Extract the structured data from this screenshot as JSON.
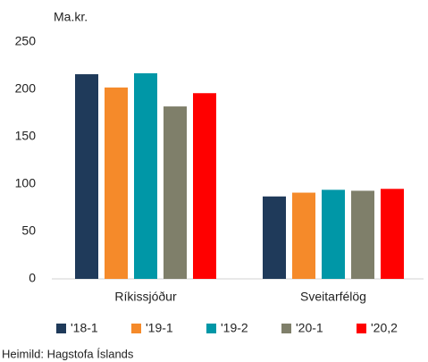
{
  "chart_data": {
    "type": "bar",
    "y_label": "Ma.kr.",
    "source": "Heimild: Hagstofa Íslands",
    "categories": [
      "Ríkissjóður",
      "Sveitarfélög"
    ],
    "series": [
      {
        "name": "'18-1",
        "color": "#1f3a5a",
        "values": [
          216,
          87
        ]
      },
      {
        "name": "'19-1",
        "color": "#f58a2a",
        "values": [
          202,
          91
        ]
      },
      {
        "name": "'19-2",
        "color": "#0097a7",
        "values": [
          217,
          94
        ]
      },
      {
        "name": "'20-1",
        "color": "#7f7f6a",
        "values": [
          182,
          93
        ]
      },
      {
        "name": "'20,2",
        "color": "#ff0000",
        "values": [
          196,
          95
        ]
      }
    ],
    "ylim": [
      0,
      250
    ],
    "yticks": [
      0,
      50,
      100,
      150,
      200,
      250
    ],
    "grid": false,
    "legend": "bottom"
  }
}
